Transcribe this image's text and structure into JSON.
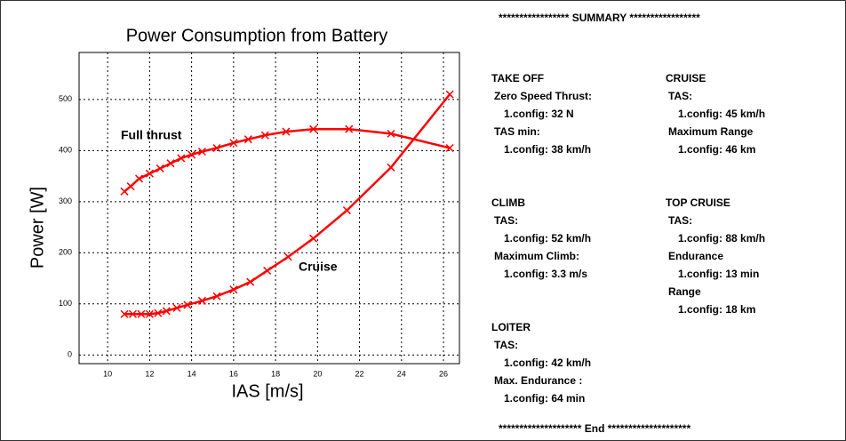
{
  "chart_data": {
    "type": "line",
    "title": "Power Consumption from Battery",
    "x_label": "IAS [m/s]",
    "y_label": "Power [W]",
    "xlim": [
      8.64,
      26.76
    ],
    "xticks": [
      10,
      12,
      14,
      16,
      18,
      20,
      22,
      24,
      26
    ],
    "ylim": [
      -17,
      592
    ],
    "yticks": [
      0,
      100,
      200,
      300,
      400,
      500
    ],
    "grid": true,
    "series": [
      {
        "name": "Full thrust",
        "color": "#ff0000",
        "x": [
          10.8,
          11.1,
          11.5,
          12,
          12.5,
          13,
          13.5,
          14,
          14.5,
          15.2,
          16,
          16.7,
          17.5,
          18.5,
          19.8,
          21.5,
          23.5,
          26.3
        ],
        "values": [
          320,
          330,
          345,
          355,
          365,
          375,
          385,
          392,
          398,
          405,
          415,
          422,
          430,
          437,
          442,
          442,
          433,
          405
        ]
      },
      {
        "name": "Cruise",
        "color": "#ff0000",
        "x": [
          10.8,
          11.2,
          11.6,
          12,
          12.4,
          12.8,
          13.3,
          13.8,
          14.5,
          15.2,
          16,
          16.8,
          17.6,
          18.6,
          19.8,
          21.4,
          23.5,
          26.3
        ],
        "values": [
          80,
          80,
          80,
          80,
          82,
          86,
          92,
          98,
          106,
          115,
          128,
          143,
          165,
          192,
          228,
          283,
          367,
          510
        ]
      }
    ]
  },
  "summary": {
    "header": "***************** SUMMARY *****************",
    "footer": "******************** End ********************",
    "sections": [
      {
        "title": "TAKE OFF",
        "items": [
          {
            "label": "Zero Speed Thrust:",
            "value": "1.config: 32 N"
          },
          {
            "label": "TAS min:",
            "value": "1.config: 38 km/h"
          }
        ]
      },
      {
        "title": "CRUISE",
        "items": [
          {
            "label": "TAS:",
            "value": "1.config: 45 km/h"
          },
          {
            "label": "Maximum Range",
            "value": "1.config: 46 km"
          }
        ]
      },
      {
        "title": "CLIMB",
        "items": [
          {
            "label": "TAS:",
            "value": "1.config: 52 km/h"
          },
          {
            "label": "Maximum Climb:",
            "value": "1.config: 3.3 m/s"
          }
        ]
      },
      {
        "title": "TOP CRUISE",
        "items": [
          {
            "label": "TAS:",
            "value": "1.config: 88 km/h"
          },
          {
            "label": "Endurance",
            "value": "1.config: 13 min"
          },
          {
            "label": "Range",
            "value": "1.config: 18 km"
          }
        ]
      },
      {
        "title": "LOITER",
        "items": [
          {
            "label": "TAS:",
            "value": "1.config: 42 km/h"
          },
          {
            "label": "Max. Endurance :",
            "value": "1.config: 64 min"
          }
        ]
      }
    ]
  }
}
